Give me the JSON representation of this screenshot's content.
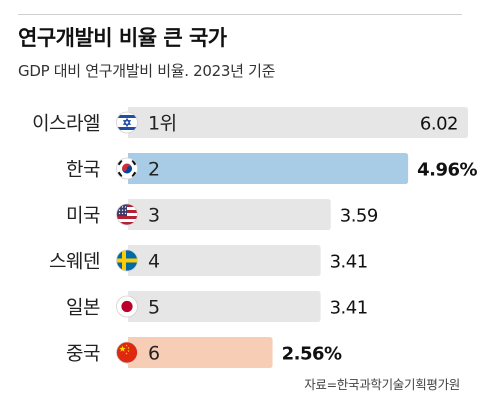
{
  "header": {
    "title": "연구개발비 비율 큰 국가",
    "subtitle": "GDP 대비 연구개발비 비율. 2023년 기준"
  },
  "source": "자료=한국과학기술기획평가원",
  "colors": {
    "track": "#e6e6e6",
    "korea": "#a8cbe6",
    "china": "#f7cdb6",
    "text": "#222222"
  },
  "chart_data": {
    "type": "bar",
    "orientation": "horizontal",
    "title": "연구개발비 비율 큰 국가",
    "subtitle": "GDP 대비 연구개발비 비율. 2023년 기준",
    "categories": [
      "이스라엘",
      "한국",
      "미국",
      "스웨덴",
      "일본",
      "중국"
    ],
    "ranks": [
      "1위",
      "2",
      "3",
      "4",
      "5",
      "6"
    ],
    "values": [
      6.02,
      4.96,
      3.59,
      3.41,
      3.41,
      2.56
    ],
    "value_labels": [
      "6.02",
      "4.96%",
      "3.59",
      "3.41",
      "3.41",
      "2.56%"
    ],
    "flags": [
      "israel-flag-icon",
      "korea-flag-icon",
      "usa-flag-icon",
      "sweden-flag-icon",
      "japan-flag-icon",
      "china-flag-icon"
    ],
    "highlight": [
      "none",
      "korea",
      "none",
      "none",
      "none",
      "china"
    ],
    "xlim": [
      0,
      6.02
    ],
    "grid": false,
    "legend": "none"
  }
}
